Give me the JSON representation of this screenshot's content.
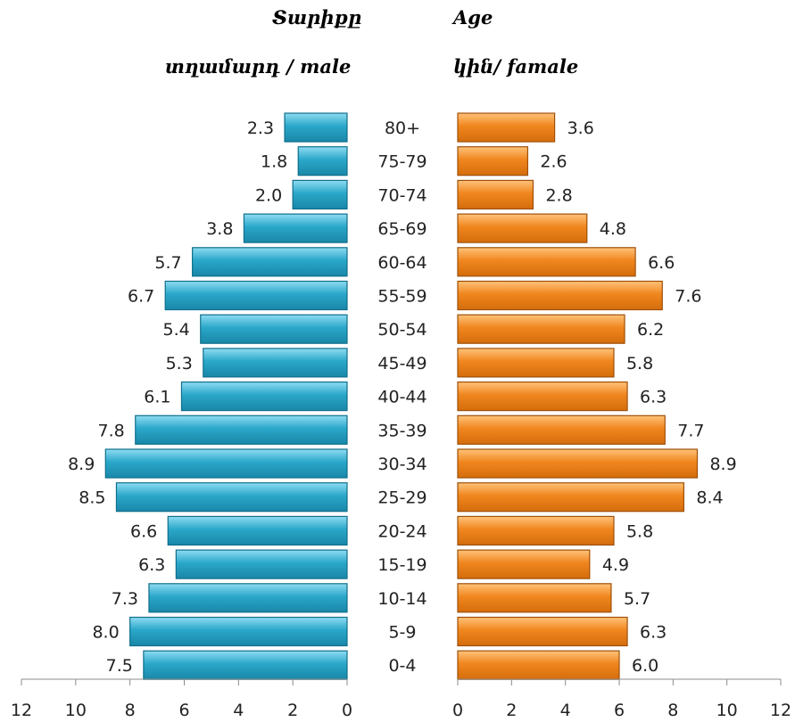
{
  "header": {
    "left_title": "Տարիքը",
    "left_subtitle": "տղամարդ / male",
    "right_title": "Age",
    "right_subtitle": "կին/ famale"
  },
  "colors": {
    "male": "#2aa7c9",
    "male_dark": "#0f6f8c",
    "female": "#f0861e",
    "female_dark": "#a04f07"
  },
  "chart_data": {
    "type": "bar",
    "orientation": "horizontal",
    "subtype": "population-pyramid",
    "categories": [
      "80+",
      "75-79",
      "70-74",
      "65-69",
      "60-64",
      "55-59",
      "50-54",
      "45-49",
      "40-44",
      "35-39",
      "30-34",
      "25-29",
      "20-24",
      "15-19",
      "10-14",
      "5-9",
      "0-4"
    ],
    "series": [
      {
        "name": "տղամարդ / male",
        "side": "left",
        "values": [
          2.3,
          1.8,
          2.0,
          3.8,
          5.7,
          6.7,
          5.4,
          5.3,
          6.1,
          7.8,
          8.9,
          8.5,
          6.6,
          6.3,
          7.3,
          8.0,
          7.5
        ],
        "labels": [
          "2.3",
          "1.8",
          "2.0",
          "3.8",
          "5.7",
          "6.7",
          "5.4",
          "5.3",
          "6.1",
          "7.8",
          "8.9",
          "8.5",
          "6.6",
          "6.3",
          "7.3",
          "8.0",
          "7.5"
        ]
      },
      {
        "name": "կին/ famale",
        "side": "right",
        "values": [
          3.6,
          2.6,
          2.8,
          4.8,
          6.6,
          7.6,
          6.2,
          5.8,
          6.3,
          7.7,
          8.9,
          8.4,
          5.8,
          4.9,
          5.7,
          6.3,
          6.0
        ],
        "labels": [
          "3.6",
          "2.6",
          "2.8",
          "4.8",
          "6.6",
          "7.6",
          "6.2",
          "5.8",
          "6.3",
          "7.7",
          "8.9",
          "8.4",
          "5.8",
          "4.9",
          "5.7",
          "6.3",
          "6.0"
        ]
      }
    ],
    "xlim": [
      0,
      12
    ],
    "left_ticks": [
      "12",
      "10",
      "8",
      "6",
      "4",
      "2",
      "0"
    ],
    "right_ticks": [
      "0",
      "2",
      "4",
      "6",
      "8",
      "10",
      "12"
    ],
    "grid": false
  }
}
